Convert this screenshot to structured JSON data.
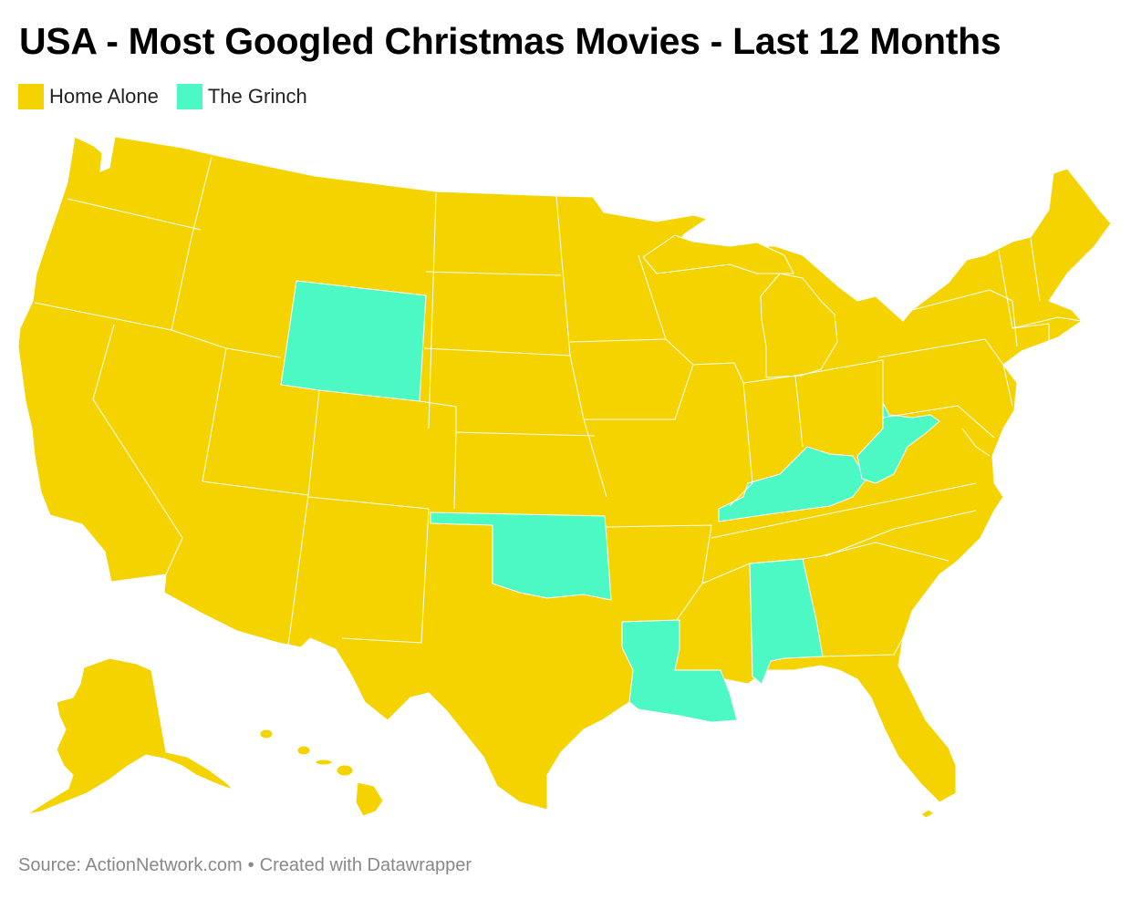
{
  "title": "USA - Most Googled Christmas Movies - Last 12 Months",
  "colors": {
    "home_alone": "#F5D300",
    "the_grinch": "#4CF9C5",
    "border": "#ffffff"
  },
  "legend": [
    {
      "label": "Home Alone",
      "color": "#F5D300"
    },
    {
      "label": "The Grinch",
      "color": "#4CF9C5"
    }
  ],
  "map": {
    "grinch_states": [
      "Wyoming",
      "Oklahoma",
      "Louisiana",
      "Alabama",
      "Kentucky",
      "West Virginia"
    ],
    "default_movie": "Home Alone"
  },
  "footer": {
    "source": "Source: ActionNetwork.com",
    "separator": "•",
    "credit": "Created with Datawrapper"
  }
}
